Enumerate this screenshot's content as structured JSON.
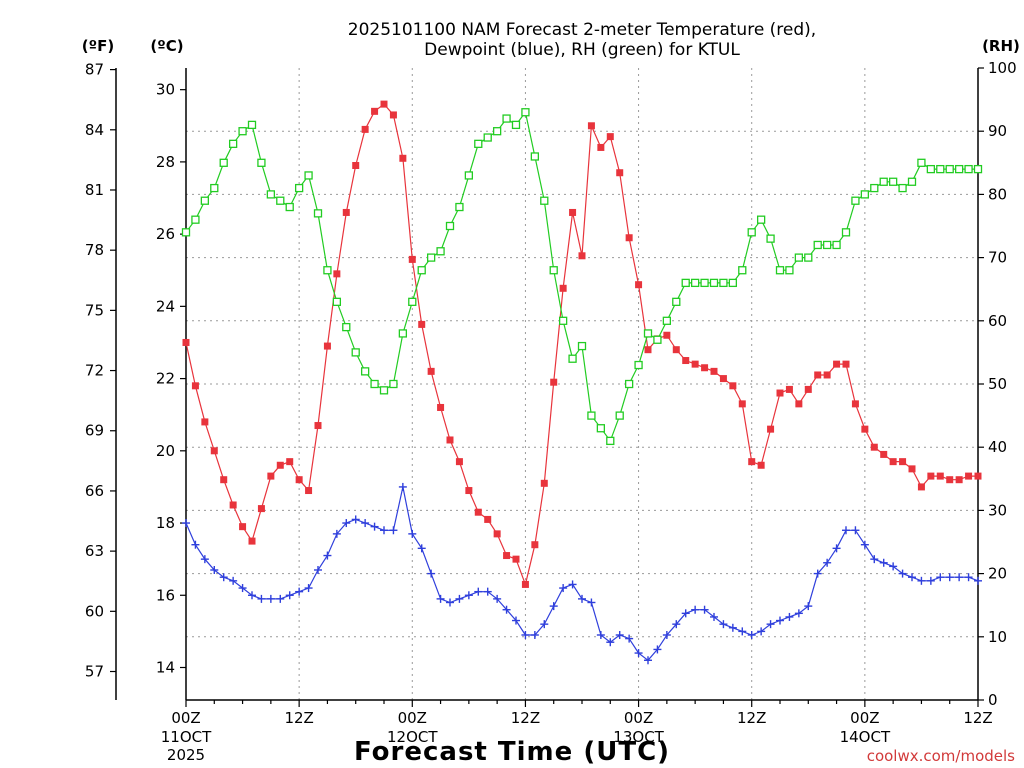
{
  "chart_data": {
    "type": "line",
    "title": "2025101100 NAM Forecast 2-meter Temperature (red),",
    "title_line2": "Dewpoint (blue), RH (green) for KTUL",
    "xlabel": "Forecast Time (UTC)",
    "credit": "coolwx.com/models",
    "units": {
      "fahrenheit": "(ºF)",
      "celsius": "(ºC)",
      "rh": "(RH)"
    },
    "x_range_hours": [
      0,
      84
    ],
    "celsius_range": [
      13.1,
      30.6
    ],
    "rh_range": [
      0,
      100
    ],
    "fahrenheit_ticks": [
      "57",
      "60",
      "63",
      "66",
      "69",
      "72",
      "75",
      "78",
      "81",
      "84",
      "87"
    ],
    "celsius_ticks": [
      "14",
      "16",
      "18",
      "20",
      "22",
      "24",
      "26",
      "28",
      "30"
    ],
    "rh_ticks": [
      "0",
      "10",
      "20",
      "30",
      "40",
      "50",
      "60",
      "70",
      "80",
      "90",
      "100"
    ],
    "x_ticks": [
      {
        "hour": 0,
        "label": "00Z",
        "label2": "11OCT",
        "label3": "2025"
      },
      {
        "hour": 12,
        "label": "12Z"
      },
      {
        "hour": 24,
        "label": "00Z",
        "label2": "12OCT"
      },
      {
        "hour": 36,
        "label": "12Z"
      },
      {
        "hour": 48,
        "label": "00Z",
        "label2": "13OCT"
      },
      {
        "hour": 60,
        "label": "12Z"
      },
      {
        "hour": 72,
        "label": "00Z",
        "label2": "14OCT"
      },
      {
        "hour": 84,
        "label": "12Z"
      }
    ],
    "series": [
      {
        "name": "2-meter Temperature",
        "unit": "C",
        "color": "#e8343c",
        "marker": "filled-square",
        "values": [
          23.0,
          21.8,
          20.8,
          20.0,
          19.2,
          18.5,
          17.9,
          17.5,
          18.4,
          19.3,
          19.6,
          19.7,
          19.2,
          18.9,
          20.7,
          22.9,
          24.9,
          26.6,
          27.9,
          28.9,
          29.4,
          29.6,
          29.3,
          28.1,
          25.3,
          23.5,
          22.2,
          21.2,
          20.3,
          19.7,
          18.9,
          18.3,
          18.1,
          17.7,
          17.1,
          17.0,
          16.3,
          17.4,
          19.1,
          21.9,
          24.5,
          26.6,
          25.4,
          29.0,
          28.4,
          28.7,
          27.7,
          25.9,
          24.6,
          22.8,
          23.1,
          23.2,
          22.8,
          22.5,
          22.4,
          22.3,
          22.2,
          22.0,
          21.8,
          21.3,
          19.7,
          19.6,
          20.6,
          21.6,
          21.7,
          21.3,
          21.7,
          22.1,
          22.1,
          22.4,
          22.4,
          21.3,
          20.6,
          20.1,
          19.9,
          19.7,
          19.7,
          19.5,
          19.0,
          19.3,
          19.3,
          19.2,
          19.2,
          19.3,
          19.3
        ]
      },
      {
        "name": "Dewpoint",
        "unit": "C",
        "color": "#2f3fdc",
        "marker": "plus",
        "values": [
          18.0,
          17.4,
          17.0,
          16.7,
          16.5,
          16.4,
          16.2,
          16.0,
          15.9,
          15.9,
          15.9,
          16.0,
          16.1,
          16.2,
          16.7,
          17.1,
          17.7,
          18.0,
          18.1,
          18.0,
          17.9,
          17.8,
          17.8,
          19.0,
          17.7,
          17.3,
          16.6,
          15.9,
          15.8,
          15.9,
          16.0,
          16.1,
          16.1,
          15.9,
          15.6,
          15.3,
          14.9,
          14.9,
          15.2,
          15.7,
          16.2,
          16.3,
          15.9,
          15.8,
          14.9,
          14.7,
          14.9,
          14.8,
          14.4,
          14.2,
          14.5,
          14.9,
          15.2,
          15.5,
          15.6,
          15.6,
          15.4,
          15.2,
          15.1,
          15.0,
          14.9,
          15.0,
          15.2,
          15.3,
          15.4,
          15.5,
          15.7,
          16.6,
          16.9,
          17.3,
          17.8,
          17.8,
          17.4,
          17.0,
          16.9,
          16.8,
          16.6,
          16.5,
          16.4,
          16.4,
          16.5,
          16.5,
          16.5,
          16.5,
          16.4
        ]
      },
      {
        "name": "RH",
        "unit": "%",
        "color": "#22cc22",
        "marker": "open-square",
        "values": [
          74,
          76,
          79,
          81,
          85,
          88,
          90,
          91,
          85,
          80,
          79,
          78,
          81,
          83,
          77,
          68,
          63,
          59,
          55,
          52,
          50,
          49,
          50,
          58,
          63,
          68,
          70,
          71,
          75,
          78,
          83,
          88,
          89,
          90,
          92,
          91,
          93,
          86,
          79,
          68,
          60,
          54,
          56,
          45,
          43,
          41,
          45,
          50,
          53,
          58,
          57,
          60,
          63,
          66,
          66,
          66,
          66,
          66,
          66,
          68,
          74,
          76,
          73,
          68,
          68,
          70,
          70,
          72,
          72,
          72,
          74,
          79,
          80,
          81,
          82,
          82,
          81,
          82,
          85,
          84,
          84,
          84,
          84,
          84,
          84
        ]
      }
    ]
  }
}
